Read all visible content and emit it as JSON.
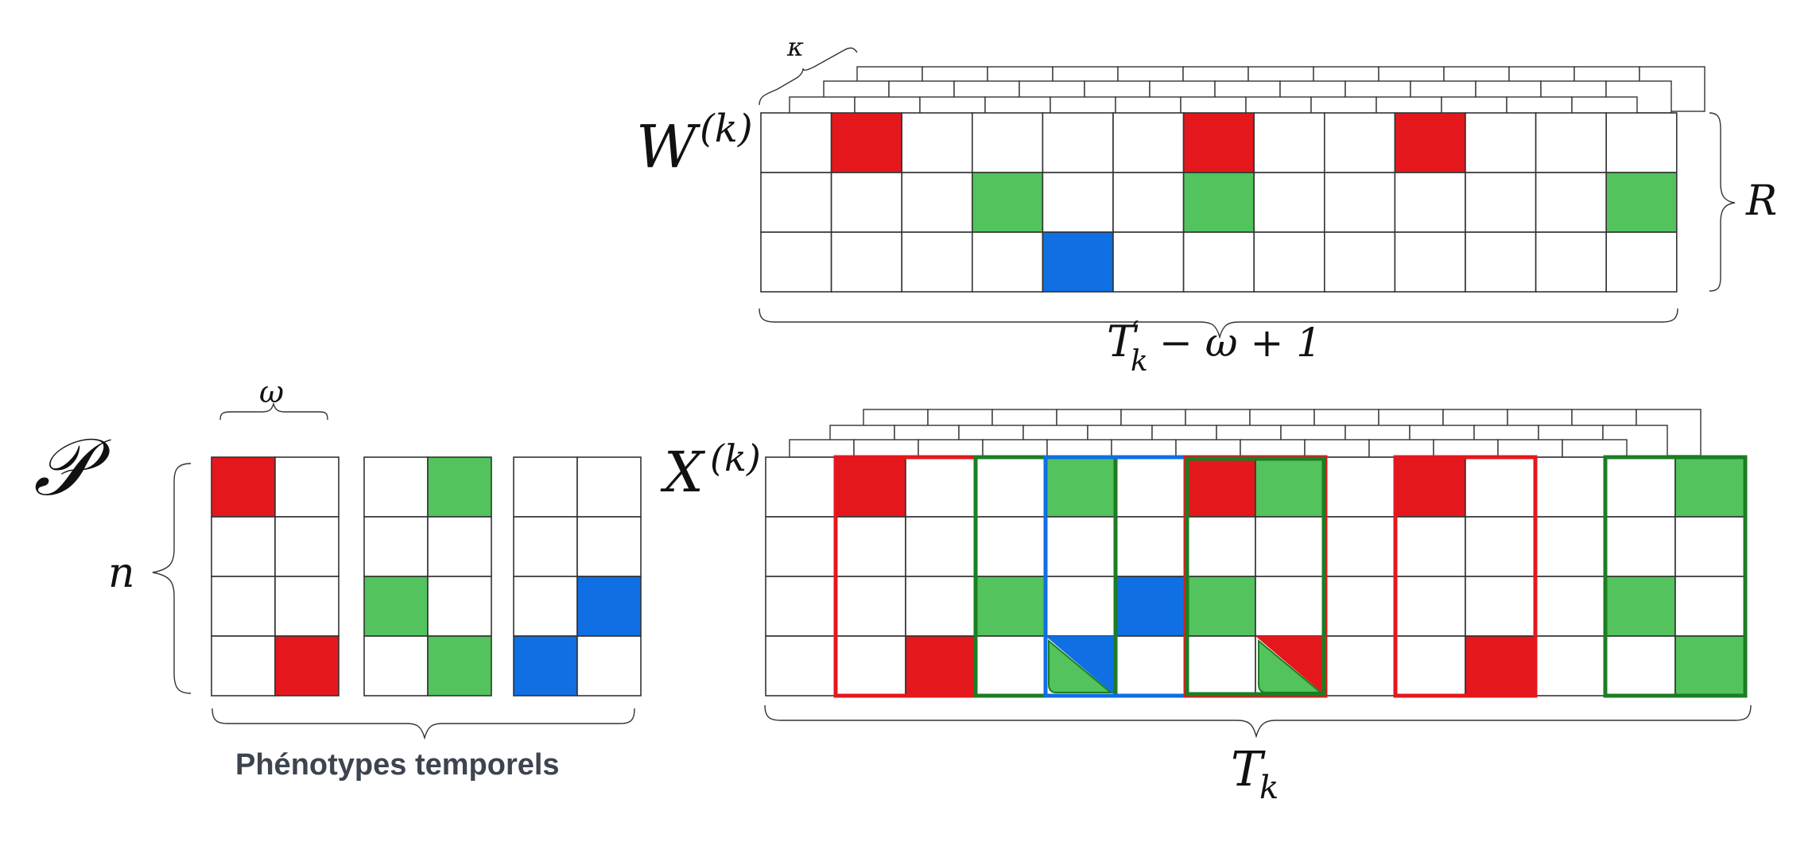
{
  "labels": {
    "W_main": "W",
    "W_sup": "(k)",
    "X_main": "X",
    "X_sup": "(k)",
    "P": "𝒫",
    "omega": "ω",
    "n": "n",
    "kappa": "κ",
    "R": "R",
    "Tprime_T": "T",
    "Tprime_prime": "′",
    "Tprime_k": "k",
    "Tprime_rest": "− ω + 1",
    "Tk_T": "T",
    "Tk_k": "k",
    "caption": "Phénotypes temporels"
  },
  "colors": {
    "red": "#e4181c",
    "green": "#52c35d",
    "blue": "#0f6fe3",
    "dark_green": "#1c7d23",
    "grid": "#333333",
    "caption": "#3d4450"
  },
  "phenotypes": [
    {
      "color": "red",
      "cells": [
        [
          0,
          0
        ],
        [
          3,
          1
        ]
      ]
    },
    {
      "color": "green",
      "cells": [
        [
          0,
          1
        ],
        [
          2,
          0
        ],
        [
          3,
          1
        ]
      ]
    },
    {
      "color": "blue",
      "cells": [
        [
          2,
          1
        ],
        [
          3,
          0
        ]
      ]
    }
  ],
  "W": {
    "rows": 3,
    "cols": 13,
    "cells": [
      [
        0,
        1,
        "red"
      ],
      [
        0,
        6,
        "red"
      ],
      [
        0,
        9,
        "red"
      ],
      [
        1,
        3,
        "green"
      ],
      [
        1,
        6,
        "green"
      ],
      [
        1,
        12,
        "green"
      ],
      [
        2,
        4,
        "blue"
      ]
    ]
  },
  "X": {
    "rows": 4,
    "cols": 14,
    "cells": [
      [
        0,
        1,
        "red"
      ],
      [
        0,
        4,
        "green"
      ],
      [
        0,
        6,
        "red"
      ],
      [
        0,
        7,
        "green"
      ],
      [
        0,
        9,
        "red"
      ],
      [
        0,
        13,
        "green"
      ],
      [
        2,
        3,
        "green"
      ],
      [
        2,
        5,
        "blue"
      ],
      [
        2,
        6,
        "green"
      ],
      [
        2,
        12,
        "green"
      ],
      [
        3,
        2,
        "red"
      ],
      [
        3,
        10,
        "red"
      ],
      [
        3,
        13,
        "green"
      ]
    ],
    "split_cells": [
      [
        3,
        4,
        "blue",
        "green"
      ],
      [
        3,
        7,
        "red",
        "green"
      ]
    ],
    "windows": [
      [
        1,
        2,
        "red"
      ],
      [
        3,
        4,
        "dark_green"
      ],
      [
        4,
        5,
        "blue"
      ],
      [
        6,
        7,
        "red"
      ],
      [
        6,
        7,
        "dark_green"
      ],
      [
        9,
        10,
        "red"
      ],
      [
        12,
        13,
        "dark_green"
      ]
    ]
  }
}
